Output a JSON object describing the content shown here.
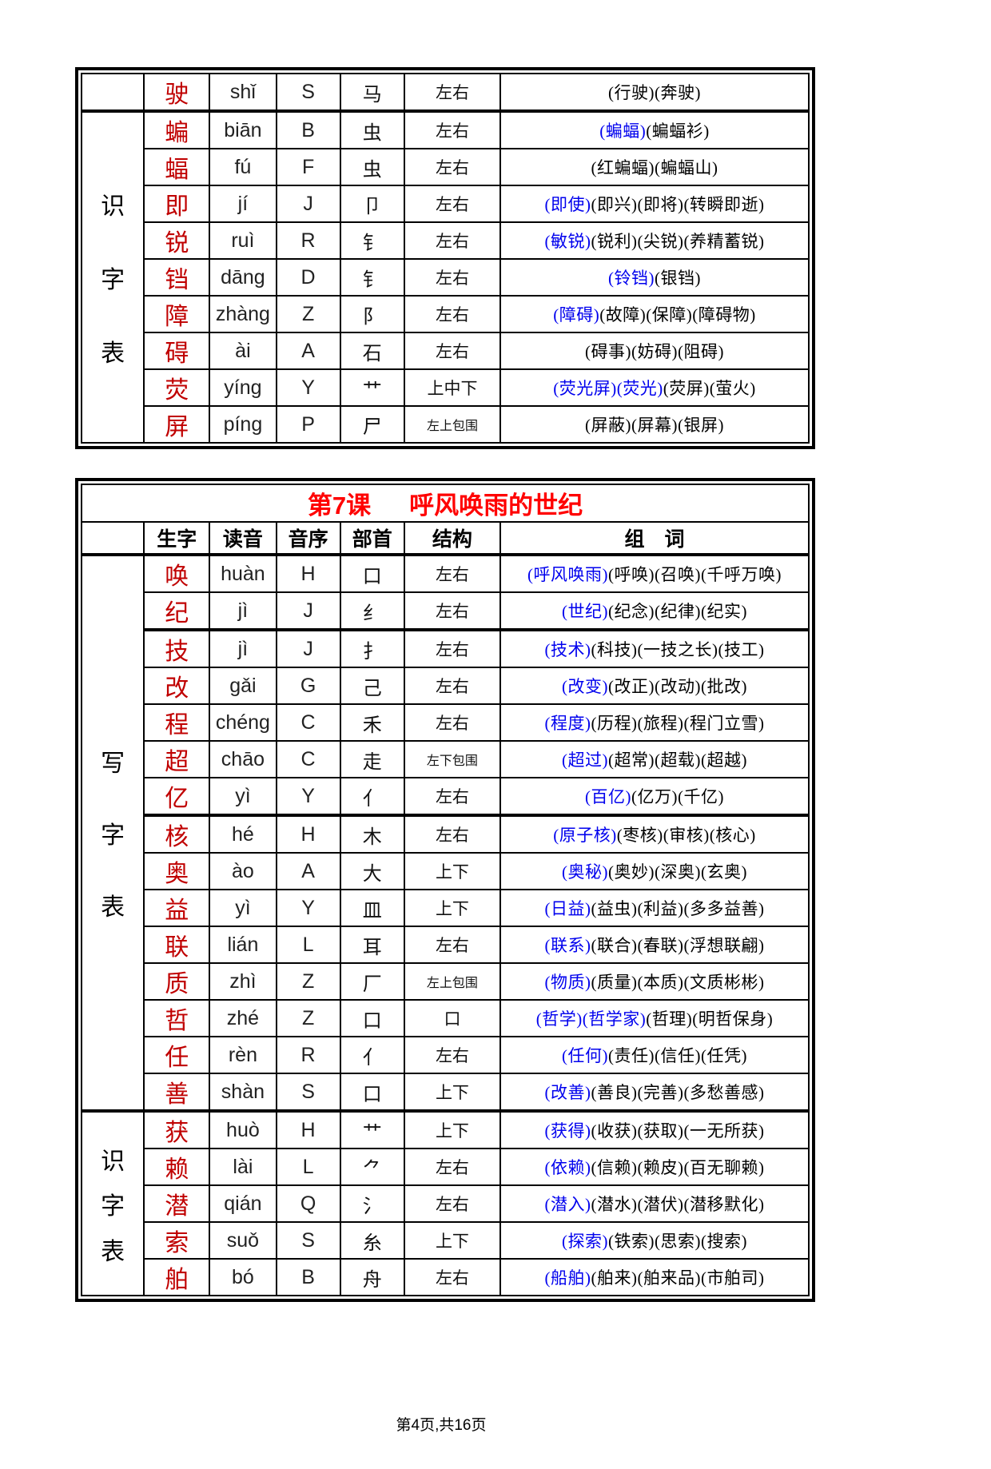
{
  "page": {
    "footer": "第4页,共16页"
  },
  "tables": [
    {
      "name": "recognition-table-continued",
      "sections": [
        {
          "label": "",
          "rows": [
            {
              "char": "驶",
              "pinyin": "shǐ",
              "initial": "S",
              "radical": "马",
              "structure": "左右",
              "blue": 0,
              "words": [
                "(行驶)",
                "(奔驶)"
              ]
            }
          ]
        },
        {
          "label": "识字表",
          "rows": [
            {
              "char": "蝙",
              "pinyin": "biān",
              "initial": "B",
              "radical": "虫",
              "structure": "左右",
              "blue": 1,
              "words": [
                "(蝙蝠)",
                "(蝙蝠衫)"
              ]
            },
            {
              "char": "蝠",
              "pinyin": "fú",
              "initial": "F",
              "radical": "虫",
              "structure": "左右",
              "blue": 0,
              "words": [
                "(红蝙蝠)",
                "(蝙蝠山)"
              ]
            },
            {
              "char": "即",
              "pinyin": "jí",
              "initial": "J",
              "radical": "卩",
              "structure": "左右",
              "blue": 1,
              "words": [
                "(即使)",
                "(即兴)",
                "(即将)",
                "(转瞬即逝)"
              ]
            },
            {
              "char": "锐",
              "pinyin": "ruì",
              "initial": "R",
              "radical": "钅",
              "structure": "左右",
              "blue": 1,
              "words": [
                "(敏锐)",
                "(锐利)",
                "(尖锐)",
                "(养精蓄锐)"
              ]
            },
            {
              "char": "铛",
              "pinyin": "dāng",
              "initial": "D",
              "radical": "钅",
              "structure": "左右",
              "blue": 1,
              "words": [
                "(铃铛)",
                "(银铛)"
              ]
            },
            {
              "char": "障",
              "pinyin": "zhàng",
              "initial": "Z",
              "radical": "阝",
              "structure": "左右",
              "blue": 1,
              "words": [
                "(障碍)",
                "(故障)",
                "(保障)",
                "(障碍物)"
              ]
            },
            {
              "char": "碍",
              "pinyin": "ài",
              "initial": "A",
              "radical": "石",
              "structure": "左右",
              "blue": 0,
              "words": [
                "(碍事)",
                "(妨碍)",
                "(阻碍)"
              ]
            },
            {
              "char": "荧",
              "pinyin": "yíng",
              "initial": "Y",
              "radical": "艹",
              "structure": "上中下",
              "blue": 2,
              "words": [
                "(荧光屏)",
                "(荧光)",
                "(荧屏)",
                "(萤火)"
              ]
            },
            {
              "char": "屏",
              "pinyin": "píng",
              "initial": "P",
              "radical": "尸",
              "structure": "左上包围",
              "blue": 0,
              "words": [
                "(屏蔽)",
                "(屏幕)",
                "(银屏)"
              ]
            }
          ]
        }
      ]
    },
    {
      "name": "lesson-7-table",
      "lesson": "第7课",
      "title": "呼风唤雨的世纪",
      "columns": [
        "生字",
        "读音",
        "音序",
        "部首",
        "结构",
        "组　词"
      ],
      "sections": [
        {
          "label": "写字表",
          "rows": [
            {
              "char": "唤",
              "pinyin": "huàn",
              "initial": "H",
              "radical": "口",
              "structure": "左右",
              "blue": 1,
              "words": [
                "(呼风唤雨)",
                "(呼唤)",
                "(召唤)",
                "(千呼万唤)"
              ]
            },
            {
              "char": "纪",
              "pinyin": "jì",
              "initial": "J",
              "radical": "纟",
              "structure": "左右",
              "blue": 1,
              "thick": true,
              "words": [
                "(世纪)",
                "(纪念)",
                "(纪律)",
                "(纪实)"
              ]
            },
            {
              "char": "技",
              "pinyin": "jì",
              "initial": "J",
              "radical": "扌",
              "structure": "左右",
              "blue": 1,
              "words": [
                "(技术)",
                "(科技)",
                "(一技之长)",
                "(技工)"
              ]
            },
            {
              "char": "改",
              "pinyin": "gǎi",
              "initial": "G",
              "radical": "己",
              "structure": "左右",
              "blue": 1,
              "words": [
                "(改变)",
                "(改正)",
                "(改动)",
                "(批改)"
              ]
            },
            {
              "char": "程",
              "pinyin": "chéng",
              "initial": "C",
              "radical": "禾",
              "structure": "左右",
              "blue": 1,
              "words": [
                "(程度)",
                "(历程)",
                "(旅程)",
                "(程门立雪)"
              ]
            },
            {
              "char": "超",
              "pinyin": "chāo",
              "initial": "C",
              "radical": "走",
              "structure": "左下包围",
              "blue": 1,
              "words": [
                "(超过)",
                "(超常)",
                "(超载)",
                "(超越)"
              ]
            },
            {
              "char": "亿",
              "pinyin": "yì",
              "initial": "Y",
              "radical": "亻",
              "structure": "左右",
              "blue": 1,
              "thick": true,
              "words": [
                "(百亿)",
                "(亿万)",
                "(千亿)"
              ]
            },
            {
              "char": "核",
              "pinyin": "hé",
              "initial": "H",
              "radical": "木",
              "structure": "左右",
              "blue": 1,
              "words": [
                "(原子核)",
                "(枣核)",
                "(审核)",
                "(核心)"
              ]
            },
            {
              "char": "奥",
              "pinyin": "ào",
              "initial": "A",
              "radical": "大",
              "structure": "上下",
              "blue": 1,
              "words": [
                "(奥秘)",
                "(奥妙)",
                "(深奥)",
                "(玄奥)"
              ]
            },
            {
              "char": "益",
              "pinyin": "yì",
              "initial": "Y",
              "radical": "皿",
              "structure": "上下",
              "blue": 1,
              "words": [
                "(日益)",
                "(益虫)",
                "(利益)",
                "(多多益善)"
              ]
            },
            {
              "char": "联",
              "pinyin": "lián",
              "initial": "L",
              "radical": "耳",
              "structure": "左右",
              "blue": 1,
              "words": [
                "(联系)",
                "(联合)",
                "(春联)",
                "(浮想联翩)"
              ]
            },
            {
              "char": "质",
              "pinyin": "zhì",
              "initial": "Z",
              "radical": "厂",
              "structure": "左上包围",
              "blue": 1,
              "words": [
                "(物质)",
                "(质量)",
                "(本质)",
                "(文质彬彬)"
              ]
            },
            {
              "char": "哲",
              "pinyin": "zhé",
              "initial": "Z",
              "radical": "口",
              "structure": "口",
              "blue": 2,
              "words": [
                "(哲学)",
                "(哲学家)",
                "(哲理)",
                "(明哲保身)"
              ]
            },
            {
              "char": "任",
              "pinyin": "rèn",
              "initial": "R",
              "radical": "亻",
              "structure": "左右",
              "blue": 1,
              "words": [
                "(任何)",
                "(责任)",
                "(信任)",
                "(任凭)"
              ]
            },
            {
              "char": "善",
              "pinyin": "shàn",
              "initial": "S",
              "radical": "口",
              "structure": "上下",
              "blue": 1,
              "words": [
                "(改善)",
                "(善良)",
                "(完善)",
                "(多愁善感)"
              ]
            }
          ]
        },
        {
          "label": "识字表",
          "rows": [
            {
              "char": "获",
              "pinyin": "huò",
              "initial": "H",
              "radical": "艹",
              "structure": "上下",
              "blue": 1,
              "words": [
                "(获得)",
                "(收获)",
                "(获取)",
                "(一无所获)"
              ]
            },
            {
              "char": "赖",
              "pinyin": "lài",
              "initial": "L",
              "radical": "⺈",
              "structure": "左右",
              "blue": 1,
              "words": [
                "(依赖)",
                "(信赖)",
                "(赖皮)",
                "(百无聊赖)"
              ]
            },
            {
              "char": "潜",
              "pinyin": "qián",
              "initial": "Q",
              "radical": "氵",
              "structure": "左右",
              "blue": 1,
              "words": [
                "(潜入)",
                "(潜水)",
                "(潜伏)",
                "(潜移默化)"
              ]
            },
            {
              "char": "索",
              "pinyin": "suǒ",
              "initial": "S",
              "radical": "糸",
              "structure": "上下",
              "blue": 1,
              "words": [
                "(探索)",
                "(铁索)",
                "(思索)",
                "(搜索)"
              ]
            },
            {
              "char": "舶",
              "pinyin": "bó",
              "initial": "B",
              "radical": "舟",
              "structure": "左右",
              "blue": 1,
              "words": [
                "(船舶)",
                "(舶来)",
                "(舶来品)",
                "(市舶司)"
              ]
            }
          ]
        }
      ]
    }
  ]
}
